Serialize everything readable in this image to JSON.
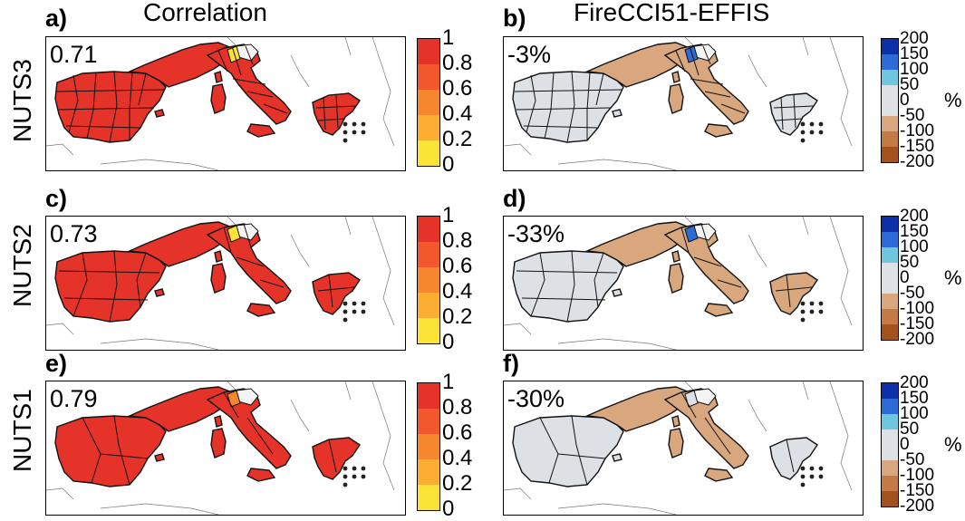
{
  "columns": [
    {
      "id": "corr",
      "title": "Correlation"
    },
    {
      "id": "diff",
      "title": "FireCCI51-EFFIS"
    }
  ],
  "rows": [
    {
      "label": "NUTS3",
      "letters": [
        "a)",
        "b)"
      ],
      "corr_value": "0.71",
      "diff_value": "-3%"
    },
    {
      "label": "NUTS2",
      "letters": [
        "c)",
        "d)"
      ],
      "corr_value": "0.73",
      "diff_value": "-33%"
    },
    {
      "label": "NUTS1",
      "letters": [
        "e)",
        "f)"
      ],
      "corr_value": "0.79",
      "diff_value": "-30%"
    }
  ],
  "corr_colorbar": {
    "ticks": [
      "1",
      "0.8",
      "0.6",
      "0.4",
      "0.2",
      "0"
    ],
    "colors": [
      "#e5332a",
      "#f2582b",
      "#f7872e",
      "#fbae32",
      "#fce437"
    ]
  },
  "diff_colorbar": {
    "ticks": [
      "200",
      "150",
      "100",
      "50",
      "0",
      "-50",
      "-100",
      "-150",
      "-200"
    ],
    "colors": [
      "#0d2fa8",
      "#2d6bd6",
      "#6fc7df",
      "#dde1e5",
      "#dde1e5",
      "#d9a77e",
      "#c47a44",
      "#a4521b"
    ],
    "unit": "%"
  },
  "region_colors": {
    "corr": {
      "NUTS3": {
        "iberia": "#e5332a",
        "italy": "#e5332a",
        "greece": "#e5332a",
        "accent": "#fce437"
      },
      "NUTS2": {
        "iberia": "#e5332a",
        "italy": "#e5332a",
        "greece": "#e5332a",
        "accent": "#fce437"
      },
      "NUTS1": {
        "iberia": "#e5332a",
        "italy": "#e5332a",
        "greece": "#e5332a",
        "accent": "#f7872e"
      }
    },
    "diff": {
      "NUTS3": {
        "iberia": "#dde1e5",
        "italy": "#d9a77e",
        "greece": "#dde1e5",
        "accent": "#2d6bd6"
      },
      "NUTS2": {
        "iberia": "#dde1e5",
        "italy": "#d9a77e",
        "greece": "#d9a77e",
        "accent": "#2d6bd6"
      },
      "NUTS1": {
        "iberia": "#dde1e5",
        "italy": "#d9a77e",
        "greece": "#dde1e5",
        "accent": "#dde1e5"
      }
    }
  }
}
